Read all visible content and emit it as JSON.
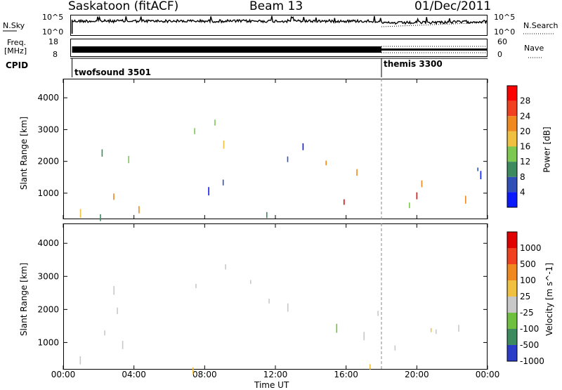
{
  "header": {
    "station": "Saskatoon (fitACF)",
    "beam": "Beam 13",
    "date": "01/Dec/2011"
  },
  "noise_panel": {
    "left_label": "N.Sky",
    "left_ticks": [
      "10^5",
      "10^0"
    ],
    "right_ticks": [
      "10^5",
      "10^0"
    ],
    "right_label": "N.Search"
  },
  "freq_panel": {
    "left_label_1": "Freq.",
    "left_label_2": "[MHz]",
    "left_ticks": [
      "18",
      "8"
    ],
    "right_ticks": [
      "60",
      "0"
    ],
    "right_label": "Nave"
  },
  "cpid_panel": {
    "label": "CPID",
    "programs": [
      {
        "name": "twofsound 3501",
        "start_hour": 0.5
      },
      {
        "name": "themis 3300",
        "start_hour": 18.0
      }
    ]
  },
  "x_axis": {
    "label": "Time UT",
    "ticks": [
      "00:00",
      "04:00",
      "08:00",
      "12:00",
      "16:00",
      "20:00",
      "00:00"
    ]
  },
  "chart_data": [
    {
      "type": "heatmap",
      "name": "power",
      "ylabel": "Slant Range [km]",
      "xlabel": "Time UT",
      "xlim": [
        0,
        24
      ],
      "ylim": [
        180,
        4600
      ],
      "yticks": [
        "1000",
        "2000",
        "3000",
        "4000"
      ],
      "colorbar": {
        "label": "Power [dB]",
        "ticks": [
          "4",
          "8",
          "12",
          "16",
          "20",
          "24",
          "28"
        ],
        "range": [
          0,
          30
        ],
        "colors": [
          "#0a1aff",
          "#3050b8",
          "#3c8a5e",
          "#7cc850",
          "#f0c040",
          "#f08820",
          "#f04020",
          "#ff0000"
        ]
      },
      "regions": [
        {
          "t0": 0.5,
          "t1": 4.5,
          "r0": 450,
          "r1": 1900,
          "level": "high"
        },
        {
          "t0": 1.5,
          "t1": 5.0,
          "r0": 1500,
          "r1": 2900,
          "level": "mid"
        },
        {
          "t0": 7.2,
          "t1": 10.5,
          "r0": 2400,
          "r1": 3400,
          "level": "mid"
        },
        {
          "t0": 9.0,
          "t1": 14.5,
          "r0": 2100,
          "r1": 3100,
          "level": "mid"
        },
        {
          "t0": 6.0,
          "t1": 10.5,
          "r0": 1000,
          "r1": 1800,
          "level": "low"
        },
        {
          "t0": 14.0,
          "t1": 18.0,
          "r0": 700,
          "r1": 2100,
          "level": "high"
        },
        {
          "t0": 18.0,
          "t1": 24.0,
          "r0": 300,
          "r1": 1700,
          "level": "high"
        },
        {
          "t0": 18.0,
          "t1": 24.0,
          "r0": 1500,
          "r1": 2100,
          "level": "mid"
        },
        {
          "t0": 0.0,
          "t1": 18.0,
          "r0": 200,
          "r1": 450,
          "level": "low"
        }
      ]
    },
    {
      "type": "heatmap",
      "name": "velocity",
      "ylabel": "Slant Range [km]",
      "xlabel": "Time UT",
      "xlim": [
        0,
        24
      ],
      "ylim": [
        180,
        4600
      ],
      "yticks": [
        "1000",
        "2000",
        "3000",
        "4000"
      ],
      "colorbar": {
        "label": "Velocity [m s^-1]",
        "ticks": [
          "1000",
          "500",
          "100",
          "25",
          "-25",
          "-100",
          "-500",
          "-1000"
        ],
        "colors": [
          "#2a3cc8",
          "#3c8a5e",
          "#70c040",
          "#c8c8c8",
          "#f0c040",
          "#f08820",
          "#f04020",
          "#e00000"
        ]
      },
      "regions": [
        {
          "t0": 0.5,
          "t1": 4.5,
          "r0": 450,
          "r1": 1900,
          "level": "ground"
        },
        {
          "t0": 1.5,
          "t1": 5.0,
          "r0": 1500,
          "r1": 2900,
          "level": "ground"
        },
        {
          "t0": 7.2,
          "t1": 10.5,
          "r0": 2400,
          "r1": 3400,
          "level": "ground"
        },
        {
          "t0": 9.0,
          "t1": 14.5,
          "r0": 2100,
          "r1": 3100,
          "level": "ground"
        },
        {
          "t0": 14.0,
          "t1": 18.0,
          "r0": 700,
          "r1": 2100,
          "level": "ground"
        },
        {
          "t0": 18.0,
          "t1": 24.0,
          "r0": 300,
          "r1": 1700,
          "level": "ground"
        },
        {
          "t0": 0.0,
          "t1": 18.0,
          "r0": 200,
          "r1": 450,
          "level": "neg"
        }
      ]
    }
  ]
}
